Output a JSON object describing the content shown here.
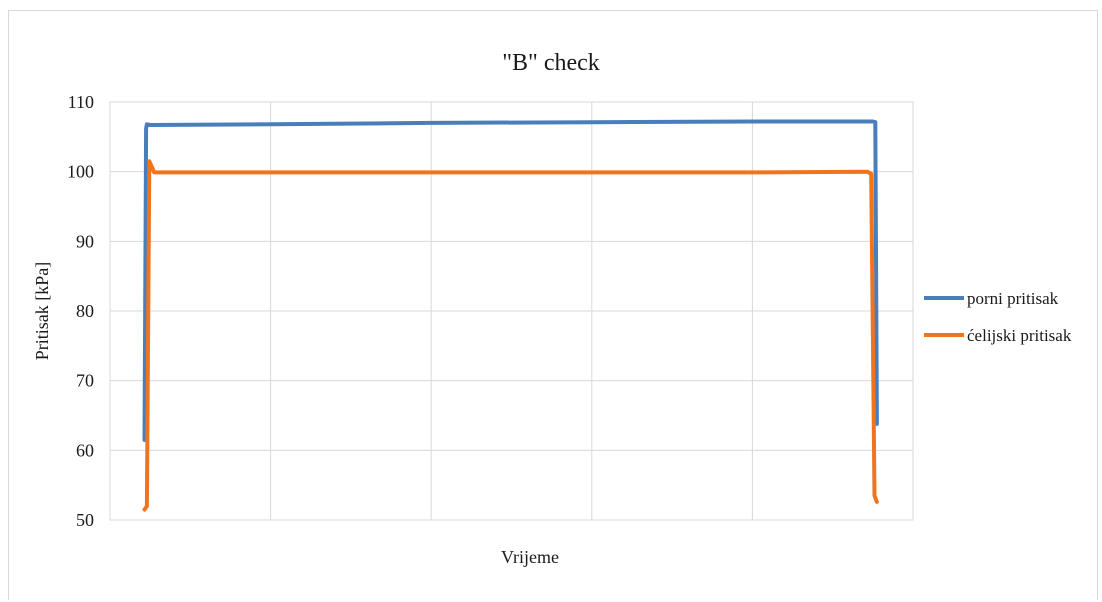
{
  "chart_data": {
    "type": "line",
    "title": "\"B\"  check",
    "xlabel": "Vrijeme",
    "ylabel": "Pritisak [kPa]",
    "ylim": [
      50,
      110
    ],
    "yticks": [
      50,
      60,
      70,
      80,
      90,
      100,
      110
    ],
    "x_tick_labels": [],
    "x_gridlines": 5,
    "grid": true,
    "legend_position": "right",
    "xlim": [
      0,
      100
    ],
    "series": [
      {
        "name": "porni pritisak",
        "color": "#4a7ebb",
        "x": [
          4.3,
          4.5,
          4.6,
          5.0,
          20,
          40,
          60,
          80,
          95.0,
          95.3,
          95.5
        ],
        "y": [
          61.5,
          106.2,
          106.8,
          106.7,
          106.8,
          107.0,
          107.1,
          107.2,
          107.2,
          107.1,
          63.8
        ]
      },
      {
        "name": "ćelijski pritisak",
        "color": "#f0731e",
        "x": [
          4.3,
          4.6,
          4.9,
          5.5,
          20,
          40,
          60,
          80,
          94.3,
          94.8,
          95.2,
          95.5
        ],
        "y": [
          51.5,
          52.0,
          101.5,
          99.9,
          99.9,
          99.9,
          99.9,
          99.9,
          100.0,
          99.7,
          53.5,
          52.6
        ]
      }
    ],
    "colors": {
      "gridline": "#d9d9d9",
      "plot_border": "#d9d9d9"
    }
  }
}
